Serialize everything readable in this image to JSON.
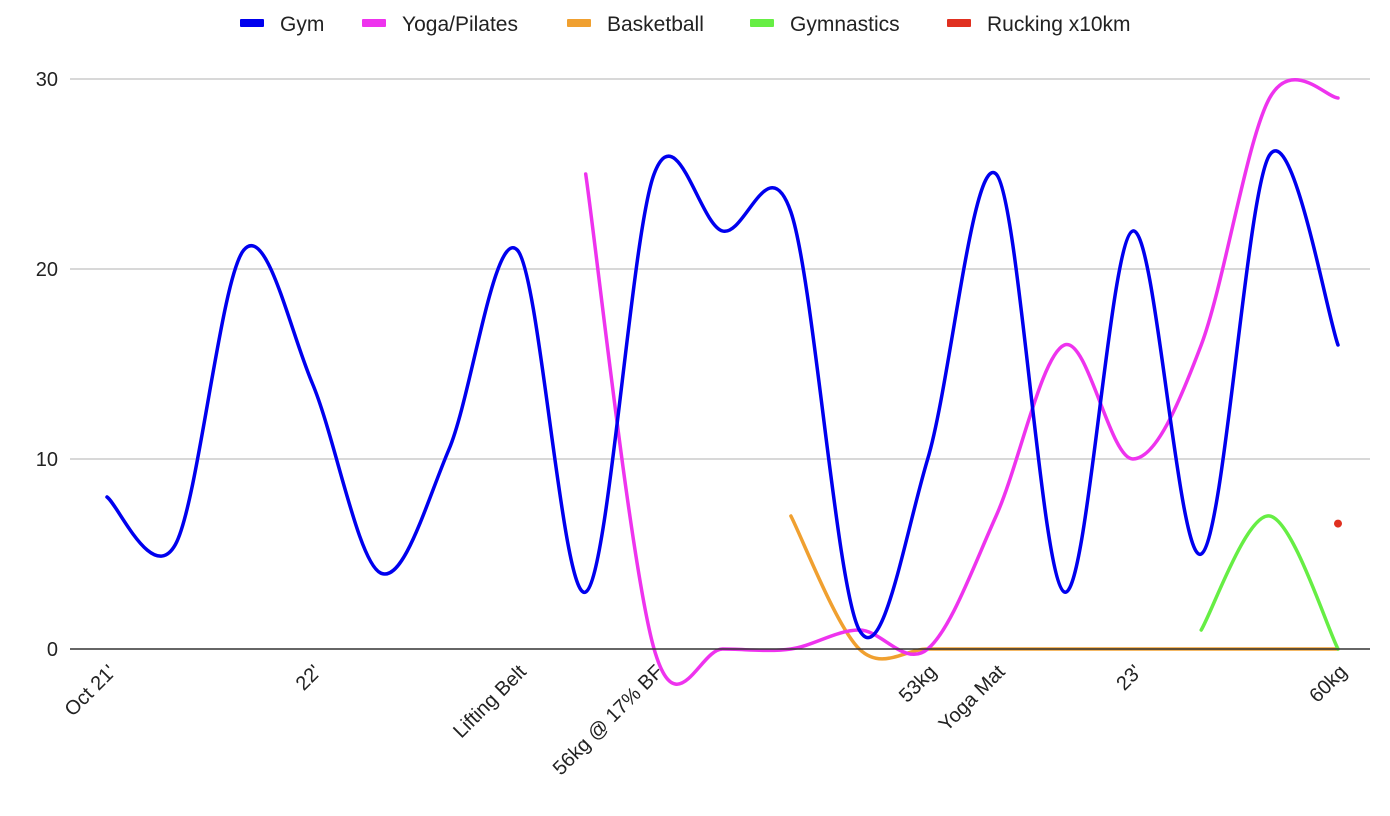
{
  "chart_data": {
    "type": "line",
    "smooth": true,
    "grid": true,
    "legend_position": "top",
    "ylim": [
      0,
      30
    ],
    "y_ticks": [
      0,
      10,
      20,
      30
    ],
    "x_tick_labels": [
      {
        "index": 0,
        "label": "Oct 21'"
      },
      {
        "index": 3,
        "label": "22'"
      },
      {
        "index": 6,
        "label": "Lifting Belt"
      },
      {
        "index": 8,
        "label": "56kg @ 17% BF"
      },
      {
        "index": 12,
        "label": "53kg"
      },
      {
        "index": 13,
        "label": "Yoga Mat"
      },
      {
        "index": 15,
        "label": "23'"
      },
      {
        "index": 18,
        "label": "60kg"
      }
    ],
    "point_count": 19,
    "series": [
      {
        "name": "Gym",
        "color": "#0000ee",
        "values": [
          8,
          5.5,
          21,
          14,
          4,
          10.5,
          21,
          3,
          25,
          22,
          23,
          1,
          10,
          25,
          3,
          22,
          5,
          26,
          16
        ]
      },
      {
        "name": "Yoga/Pilates",
        "color": "#ee33ee",
        "values": [
          null,
          null,
          null,
          null,
          null,
          null,
          null,
          25,
          0,
          0,
          0,
          1,
          0,
          7,
          16,
          10,
          16,
          29,
          29
        ]
      },
      {
        "name": "Basketball",
        "color": "#f0a030",
        "values": [
          null,
          null,
          null,
          null,
          null,
          null,
          null,
          null,
          null,
          null,
          7,
          0,
          0,
          0,
          0,
          0,
          0,
          0,
          0
        ]
      },
      {
        "name": "Gymnastics",
        "color": "#66ee44",
        "values": [
          null,
          null,
          null,
          null,
          null,
          null,
          null,
          null,
          null,
          null,
          null,
          null,
          null,
          null,
          null,
          null,
          1,
          7,
          0
        ]
      },
      {
        "name": "Rucking x10km",
        "color": "#e03020",
        "values": [
          null,
          null,
          null,
          null,
          null,
          null,
          null,
          null,
          null,
          null,
          null,
          null,
          null,
          null,
          null,
          null,
          null,
          null,
          6.6
        ]
      }
    ]
  }
}
